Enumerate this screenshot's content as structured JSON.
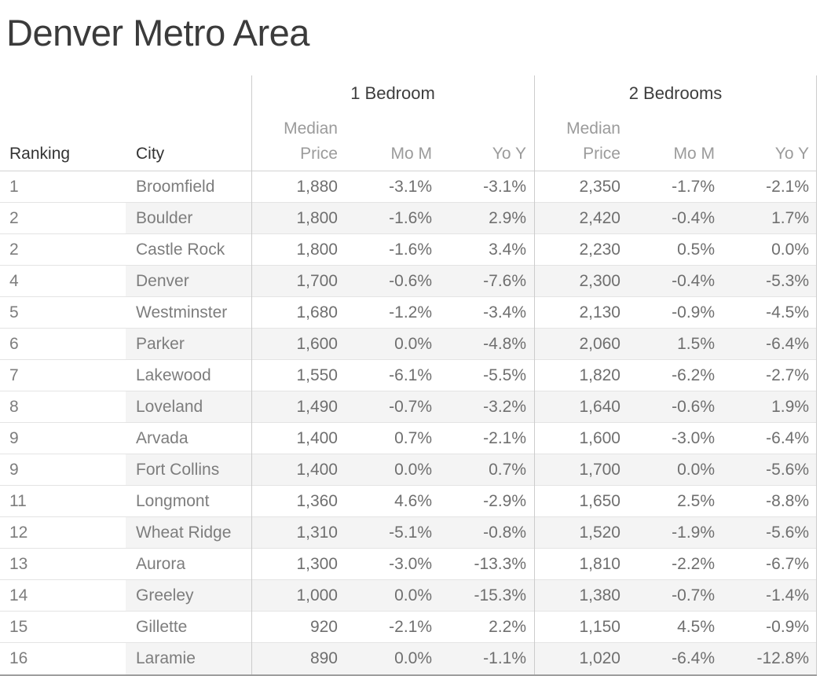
{
  "labels": {
    "ranking": "Ranking",
    "city": "City",
    "median_price": "Median Price",
    "mom": "Mo M",
    "yoy": "Yo Y"
  },
  "chart_data": {
    "type": "table",
    "title": "Denver Metro Area",
    "column_groups": [
      {
        "label": "1 Bedroom",
        "columns": [
          "Median Price",
          "Mo M",
          "Yo Y"
        ]
      },
      {
        "label": "2 Bedrooms",
        "columns": [
          "Median Price",
          "Mo M",
          "Yo Y"
        ]
      }
    ],
    "columns": [
      "Ranking",
      "City",
      "1 Bedroom Median Price",
      "1 Bedroom Mo M",
      "1 Bedroom Yo Y",
      "2 Bedrooms Median Price",
      "2 Bedrooms Mo M",
      "2 Bedrooms Yo Y"
    ],
    "rows": [
      [
        "1",
        "Broomfield",
        "1,880",
        "-3.1%",
        "-3.1%",
        "2,350",
        "-1.7%",
        "-2.1%"
      ],
      [
        "2",
        "Boulder",
        "1,800",
        "-1.6%",
        "2.9%",
        "2,420",
        "-0.4%",
        "1.7%"
      ],
      [
        "2",
        "Castle Rock",
        "1,800",
        "-1.6%",
        "3.4%",
        "2,230",
        "0.5%",
        "0.0%"
      ],
      [
        "4",
        "Denver",
        "1,700",
        "-0.6%",
        "-7.6%",
        "2,300",
        "-0.4%",
        "-5.3%"
      ],
      [
        "5",
        "Westminster",
        "1,680",
        "-1.2%",
        "-3.4%",
        "2,130",
        "-0.9%",
        "-4.5%"
      ],
      [
        "6",
        "Parker",
        "1,600",
        "0.0%",
        "-4.8%",
        "2,060",
        "1.5%",
        "-6.4%"
      ],
      [
        "7",
        "Lakewood",
        "1,550",
        "-6.1%",
        "-5.5%",
        "1,820",
        "-6.2%",
        "-2.7%"
      ],
      [
        "8",
        "Loveland",
        "1,490",
        "-0.7%",
        "-3.2%",
        "1,640",
        "-0.6%",
        "1.9%"
      ],
      [
        "9",
        "Arvada",
        "1,400",
        "0.7%",
        "-2.1%",
        "1,600",
        "-3.0%",
        "-6.4%"
      ],
      [
        "9",
        "Fort Collins",
        "1,400",
        "0.0%",
        "0.7%",
        "1,700",
        "0.0%",
        "-5.6%"
      ],
      [
        "11",
        "Longmont",
        "1,360",
        "4.6%",
        "-2.9%",
        "1,650",
        "2.5%",
        "-8.8%"
      ],
      [
        "12",
        "Wheat Ridge",
        "1,310",
        "-5.1%",
        "-0.8%",
        "1,520",
        "-1.9%",
        "-5.6%"
      ],
      [
        "13",
        "Aurora",
        "1,300",
        "-3.0%",
        "-13.3%",
        "1,810",
        "-2.2%",
        "-6.7%"
      ],
      [
        "14",
        "Greeley",
        "1,000",
        "0.0%",
        "-15.3%",
        "1,380",
        "-0.7%",
        "-1.4%"
      ],
      [
        "15",
        "Gillette",
        "920",
        "-2.1%",
        "2.2%",
        "1,150",
        "4.5%",
        "-0.9%"
      ],
      [
        "16",
        "Laramie",
        "890",
        "0.0%",
        "-1.1%",
        "1,020",
        "-6.4%",
        "-12.8%"
      ]
    ]
  },
  "colors": {
    "title_text": "#3b3b3b",
    "field_label_text": "#333333",
    "measure_header_text": "#9b9b9b",
    "data_text": "#6f6f6f",
    "row_stripe": "#f4f4f4",
    "row_line": "#e4e4e4",
    "header_line": "#d2d2d2",
    "section_line": "#cccccc",
    "bottom_line": "#9e9e9e"
  }
}
